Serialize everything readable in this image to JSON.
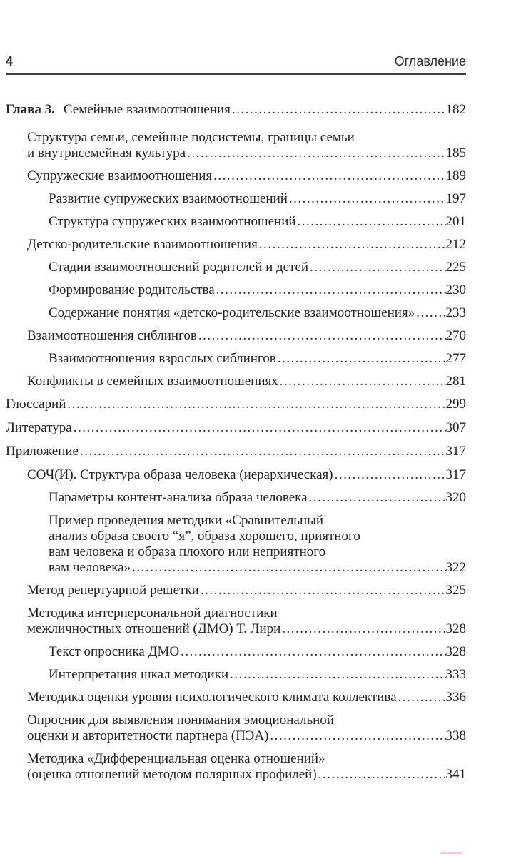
{
  "page": {
    "number": "4",
    "header_title": "Оглавление"
  },
  "toc": {
    "entries": [
      {
        "level": 0,
        "chapter": true,
        "prefix": "Глава 3.",
        "lines": [
          "Семейные взаимоотношения"
        ],
        "page": "182"
      },
      {
        "level": 1,
        "lines": [
          "Структура семьи, семейные подсистемы, границы семьи",
          "и внутрисемейная культура"
        ],
        "page": "185"
      },
      {
        "level": 1,
        "lines": [
          "Супружеские взаимоотношения"
        ],
        "page": "189"
      },
      {
        "level": 2,
        "lines": [
          "Развитие супружеских взаимоотношений"
        ],
        "page": "197"
      },
      {
        "level": 2,
        "lines": [
          "Структура супружеских взаимоотношений"
        ],
        "page": "201"
      },
      {
        "level": 1,
        "lines": [
          "Детско-родительские взаимоотношения"
        ],
        "page": "212"
      },
      {
        "level": 2,
        "lines": [
          "Стадии взаимоотношений родителей и детей"
        ],
        "page": "225"
      },
      {
        "level": 2,
        "lines": [
          "Формирование родительства"
        ],
        "page": "230"
      },
      {
        "level": 2,
        "lines": [
          "Содержание понятия «детско-родительские взаимоотношения»"
        ],
        "page": "233"
      },
      {
        "level": 1,
        "lines": [
          "Взаимоотношения сиблингов"
        ],
        "page": "270"
      },
      {
        "level": 2,
        "lines": [
          "Взаимоотношения взрослых сиблингов"
        ],
        "page": "277"
      },
      {
        "level": 1,
        "lines": [
          "Конфликты в семейных взаимоотношениях"
        ],
        "page": "281"
      },
      {
        "level": 0,
        "lines": [
          "Глоссарий"
        ],
        "page": "299"
      },
      {
        "level": 0,
        "lines": [
          "Литература"
        ],
        "page": "307"
      },
      {
        "level": 0,
        "lines": [
          "Приложение"
        ],
        "page": "317"
      },
      {
        "level": 1,
        "lines": [
          "СОЧ(И). Структура образа человека (иерархическая)"
        ],
        "page": "317"
      },
      {
        "level": 2,
        "lines": [
          "Параметры контент-анализа образа человека"
        ],
        "page": "320"
      },
      {
        "level": 2,
        "lines": [
          "Пример проведения методики «Сравнительный",
          "анализ образа своего “я”, образа хорошего, приятного",
          "вам человека и образа плохого или неприятного",
          "вам человека»"
        ],
        "page": "322"
      },
      {
        "level": 1,
        "lines": [
          "Метод репертуарной решетки"
        ],
        "page": "325"
      },
      {
        "level": 1,
        "lines": [
          "Методика интерперсональной диагностики",
          "межличностных отношений (ДМО) Т. Лири"
        ],
        "page": "328"
      },
      {
        "level": 2,
        "lines": [
          "Текст опросника ДМО"
        ],
        "page": "328"
      },
      {
        "level": 2,
        "lines": [
          "Интерпретация шкал методики"
        ],
        "page": "333"
      },
      {
        "level": 1,
        "lines": [
          "Методика оценки уровня психологического климата коллектива"
        ],
        "page": "336"
      },
      {
        "level": 1,
        "lines": [
          "Опросник для выявления понимания эмоциональной",
          "оценки и авторитетности партнера (ПЭА)"
        ],
        "page": "338"
      },
      {
        "level": 1,
        "lines": [
          "Методика «Дифференциальная оценка отношений»",
          "(оценка отношений методом полярных профилей)"
        ],
        "page": "341"
      }
    ]
  },
  "footer": {
    "indicator_color": "#f8c8da"
  }
}
